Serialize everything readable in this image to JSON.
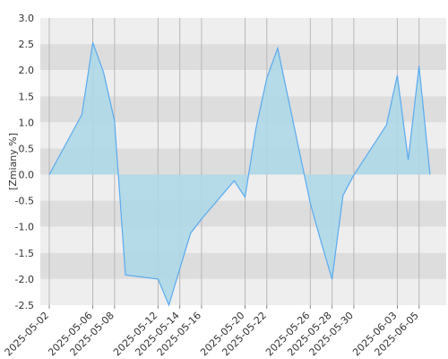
{
  "chart_data": {
    "type": "area",
    "ylabel": "[Zmiany %]",
    "ylim": [
      -2.5,
      3.0
    ],
    "y_ticks": [
      "3.0",
      "2.5",
      "2.0",
      "1.5",
      "1.0",
      "0.5",
      "0.0",
      "-0.5",
      "-1.0",
      "-1.5",
      "-2.0",
      "-2.5"
    ],
    "x_tick_labels": [
      "2025-05-02",
      "2025-05-06",
      "2025-05-08",
      "2025-05-12",
      "2025-05-14",
      "2025-05-16",
      "2025-05-20",
      "2025-05-22",
      "2025-05-26",
      "2025-05-28",
      "2025-05-30",
      "2025-06-03",
      "2025-06-05"
    ],
    "grid": true,
    "series": [
      {
        "x": [
          "2025-05-02",
          "2025-05-05",
          "2025-05-06",
          "2025-05-07",
          "2025-05-08",
          "2025-05-09",
          "2025-05-12",
          "2025-05-13",
          "2025-05-14",
          "2025-05-15",
          "2025-05-16",
          "2025-05-19",
          "2025-05-20",
          "2025-05-21",
          "2025-05-22",
          "2025-05-23",
          "2025-05-26",
          "2025-05-27",
          "2025-05-28",
          "2025-05-29",
          "2025-05-30",
          "2025-06-02",
          "2025-06-03",
          "2025-06-04",
          "2025-06-05",
          "2025-06-06"
        ],
        "values": [
          0.0,
          1.15,
          2.53,
          1.95,
          1.03,
          -1.92,
          -2.0,
          -2.5,
          -1.8,
          -1.12,
          -0.85,
          -0.12,
          -0.43,
          0.88,
          1.85,
          2.42,
          -0.55,
          -1.3,
          -2.0,
          -0.4,
          -0.01,
          0.95,
          1.9,
          0.28,
          2.08,
          0.0
        ]
      }
    ],
    "colors": {
      "fill": "#add8e6",
      "line": "#5aaaf0",
      "band_light": "#eeeeee",
      "band_dark": "#dddddd",
      "grid": "#b8b8b8"
    }
  }
}
